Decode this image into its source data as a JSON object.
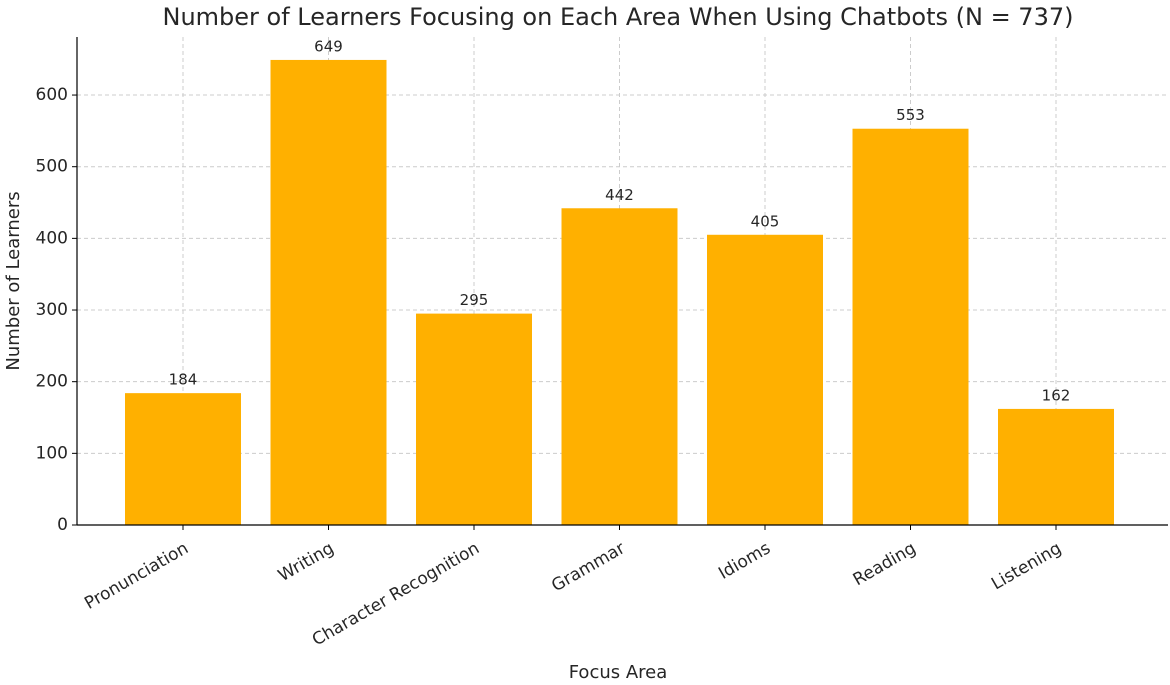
{
  "chart_data": {
    "type": "bar",
    "title": "Number of Learners Focusing on Each Area When Using Chatbots (N = 737)",
    "x_label": "Focus Area",
    "y_label": "Number of Learners",
    "categories": [
      "Pronunciation",
      "Writing",
      "Character Recognition",
      "Grammar",
      "Idioms",
      "Reading",
      "Listening"
    ],
    "values": [
      184,
      649,
      295,
      442,
      405,
      553,
      162
    ],
    "color": "#ffb000",
    "ylim": [
      0,
      681
    ],
    "yticks": [
      0,
      100,
      200,
      300,
      400,
      500,
      600
    ],
    "grid": true
  }
}
